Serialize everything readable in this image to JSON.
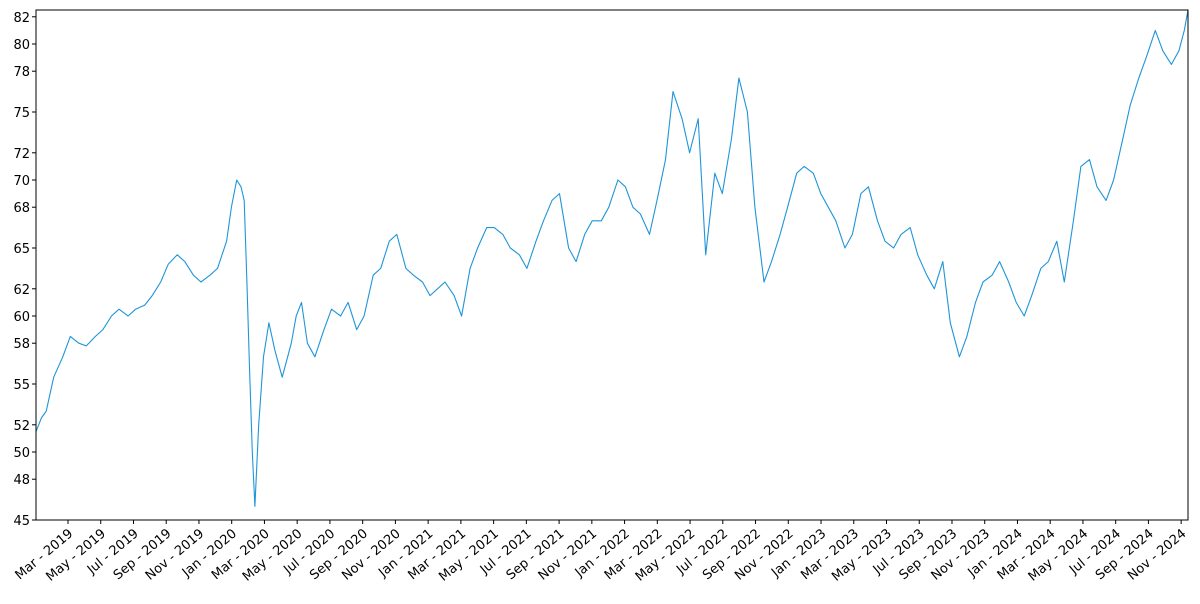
{
  "chart_data": {
    "type": "line",
    "title": "",
    "xlabel": "",
    "ylabel": "",
    "ylim": [
      45,
      82.5
    ],
    "y_ticks": [
      45,
      48,
      50,
      52,
      55,
      58,
      60,
      62,
      65,
      68,
      70,
      72,
      75,
      78,
      80,
      82
    ],
    "x_ticks": [
      "Mar - 2019",
      "May - 2019",
      "Jul - 2019",
      "Sep - 2019",
      "Nov - 2019",
      "Jan - 2020",
      "Mar - 2020",
      "May - 2020",
      "Jul - 2020",
      "Sep - 2020",
      "Nov - 2020",
      "Jan - 2021",
      "Mar - 2021",
      "May - 2021",
      "Jul - 2021",
      "Sep - 2021",
      "Nov - 2021",
      "Jan - 2022",
      "Mar - 2022",
      "May - 2022",
      "Jul - 2022",
      "Sep - 2022",
      "Nov - 2022",
      "Jan - 2023",
      "Mar - 2023",
      "May - 2023",
      "Jul - 2023",
      "Sep - 2023",
      "Nov - 2023",
      "Jan - 2024",
      "Mar - 2024",
      "May - 2024",
      "Jul - 2024",
      "Sep - 2024",
      "Nov - 2024"
    ],
    "grid": false,
    "line_color": "#1f95d8",
    "series": [
      {
        "x": [
          "2019-02-10",
          "2019-02-20",
          "2019-03-01",
          "2019-03-15",
          "2019-04-01",
          "2019-04-15",
          "2019-05-01",
          "2019-05-15",
          "2019-06-01",
          "2019-06-15",
          "2019-07-01",
          "2019-07-15",
          "2019-08-01",
          "2019-08-15",
          "2019-09-01",
          "2019-09-15",
          "2019-10-01",
          "2019-10-15",
          "2019-11-01",
          "2019-11-15",
          "2019-12-01",
          "2019-12-15",
          "2020-01-01",
          "2020-01-15",
          "2020-02-01",
          "2020-02-10",
          "2020-02-20",
          "2020-02-28",
          "2020-03-05",
          "2020-03-10",
          "2020-03-15",
          "2020-03-20",
          "2020-03-25",
          "2020-04-01",
          "2020-04-10",
          "2020-04-20",
          "2020-05-01",
          "2020-05-15",
          "2020-06-01",
          "2020-06-10",
          "2020-06-20",
          "2020-07-01",
          "2020-07-15",
          "2020-08-01",
          "2020-08-15",
          "2020-09-01",
          "2020-09-15",
          "2020-10-01",
          "2020-10-15",
          "2020-11-01",
          "2020-11-15",
          "2020-12-01",
          "2020-12-15",
          "2021-01-01",
          "2021-01-15",
          "2021-02-01",
          "2021-02-15",
          "2021-03-01",
          "2021-03-15",
          "2021-04-01",
          "2021-04-15",
          "2021-05-01",
          "2021-05-15",
          "2021-06-01",
          "2021-06-15",
          "2021-07-01",
          "2021-07-15",
          "2021-08-01",
          "2021-08-15",
          "2021-09-01",
          "2021-09-15",
          "2021-10-01",
          "2021-10-15",
          "2021-11-01",
          "2021-11-15",
          "2021-12-01",
          "2021-12-15",
          "2022-01-01",
          "2022-01-15",
          "2022-02-01",
          "2022-02-15",
          "2022-03-01",
          "2022-03-15",
          "2022-04-01",
          "2022-04-15",
          "2022-05-01",
          "2022-05-15",
          "2022-06-01",
          "2022-06-15",
          "2022-07-01",
          "2022-07-15",
          "2022-08-01",
          "2022-08-15",
          "2022-09-01",
          "2022-09-15",
          "2022-10-01",
          "2022-10-15",
          "2022-11-01",
          "2022-11-15",
          "2022-12-01",
          "2022-12-15",
          "2023-01-01",
          "2023-01-15",
          "2023-02-01",
          "2023-02-15",
          "2023-03-01",
          "2023-03-15",
          "2023-04-01",
          "2023-04-15",
          "2023-05-01",
          "2023-05-15",
          "2023-06-01",
          "2023-06-15",
          "2023-07-01",
          "2023-07-15",
          "2023-08-01",
          "2023-08-15",
          "2023-09-01",
          "2023-09-15",
          "2023-10-01",
          "2023-10-15",
          "2023-11-01",
          "2023-11-15",
          "2023-12-01",
          "2023-12-15",
          "2024-01-01",
          "2024-01-15",
          "2024-02-01",
          "2024-02-15",
          "2024-03-01",
          "2024-03-15",
          "2024-04-01",
          "2024-04-15",
          "2024-05-01",
          "2024-05-15",
          "2024-06-01",
          "2024-06-15",
          "2024-07-01",
          "2024-07-15",
          "2024-08-01",
          "2024-08-15",
          "2024-09-01",
          "2024-09-15",
          "2024-10-01",
          "2024-10-15",
          "2024-11-01",
          "2024-11-15",
          "2024-12-01",
          "2024-12-15",
          "2024-12-25",
          "2025-01-01"
        ],
        "y": [
          51.5,
          52.5,
          53.0,
          55.5,
          57.0,
          58.5,
          58.0,
          57.8,
          58.5,
          59.0,
          60.0,
          60.5,
          60.0,
          60.5,
          60.8,
          61.5,
          62.5,
          63.8,
          64.5,
          64.0,
          63.0,
          62.5,
          63.0,
          63.5,
          65.5,
          68.0,
          70.0,
          69.5,
          68.5,
          62.5,
          56.0,
          50.0,
          46.0,
          52.0,
          57.0,
          59.5,
          57.5,
          55.5,
          58.0,
          60.0,
          61.0,
          58.0,
          57.0,
          59.0,
          60.5,
          60.0,
          61.0,
          59.0,
          60.0,
          63.0,
          63.5,
          65.5,
          66.0,
          63.5,
          63.0,
          62.5,
          61.5,
          62.0,
          62.5,
          61.5,
          60.0,
          63.5,
          65.0,
          66.5,
          66.5,
          66.0,
          65.0,
          64.5,
          63.5,
          65.5,
          67.0,
          68.5,
          69.0,
          65.0,
          64.0,
          66.0,
          67.0,
          67.0,
          68.0,
          70.0,
          69.5,
          68.0,
          67.5,
          66.0,
          68.5,
          71.5,
          76.5,
          74.5,
          72.0,
          74.5,
          64.5,
          70.5,
          69.0,
          73.0,
          77.5,
          75.0,
          68.0,
          62.5,
          64.0,
          66.0,
          68.0,
          70.5,
          71.0,
          70.5,
          69.0,
          68.0,
          67.0,
          65.0,
          66.0,
          69.0,
          69.5,
          67.0,
          65.5,
          65.0,
          66.0,
          66.5,
          64.5,
          63.0,
          62.0,
          64.0,
          59.5,
          57.0,
          58.5,
          61.0,
          62.5,
          63.0,
          64.0,
          62.5,
          61.0,
          60.0,
          61.5,
          63.5,
          64.0,
          65.5,
          62.5,
          67.0,
          71.0,
          71.5,
          69.5,
          68.5,
          70.0,
          73.0,
          75.5,
          77.5,
          79.0,
          81.0,
          79.5,
          78.5,
          79.5,
          81.0,
          82.5
        ]
      }
    ]
  }
}
